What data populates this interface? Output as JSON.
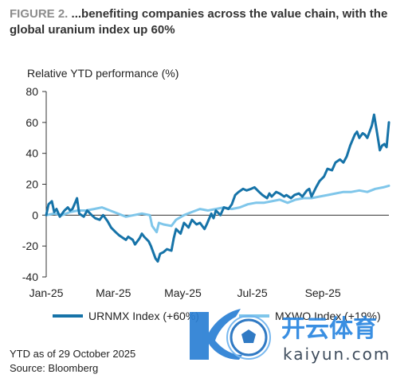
{
  "header": {
    "figure_label": "FIGURE 2.",
    "title": "...benefiting companies across the value chain, with the global uranium index up 60%"
  },
  "footer": {
    "note": "YTD as of 29 October 2025",
    "source": "Source: Bloomberg"
  },
  "watermark": {
    "text": "开云体育",
    "domain": "kaiyun.com"
  },
  "colors": {
    "urnmx": "#1673a8",
    "mxwo": "#7fc6ea",
    "axis": "#333333"
  },
  "chart_data": {
    "type": "line",
    "title": "",
    "ylabel": "Relative YTD performance (%)",
    "xlabel": "",
    "ylim": [
      -40,
      80
    ],
    "yticks": [
      -40,
      -20,
      0,
      20,
      40,
      60,
      80
    ],
    "xlim": [
      "2025-01-01",
      "2025-10-29"
    ],
    "xticks": [
      {
        "label": "Jan-25",
        "date": "2025-01-01"
      },
      {
        "label": "Mar-25",
        "date": "2025-03-01"
      },
      {
        "label": "May-25",
        "date": "2025-05-01"
      },
      {
        "label": "Jul-25",
        "date": "2025-07-01"
      },
      {
        "label": "Sep-25",
        "date": "2025-09-01"
      }
    ],
    "legend_position": "bottom",
    "series": [
      {
        "name": "URNMX Index (+60%)",
        "color": "#1673a8",
        "points": [
          [
            "2025-01-01",
            0
          ],
          [
            "2025-01-03",
            7
          ],
          [
            "2025-01-06",
            9
          ],
          [
            "2025-01-08",
            2
          ],
          [
            "2025-01-10",
            4
          ],
          [
            "2025-01-13",
            -1
          ],
          [
            "2025-01-15",
            1
          ],
          [
            "2025-01-17",
            3
          ],
          [
            "2025-01-20",
            5
          ],
          [
            "2025-01-22",
            3
          ],
          [
            "2025-01-24",
            4
          ],
          [
            "2025-01-27",
            9
          ],
          [
            "2025-01-28",
            11
          ],
          [
            "2025-01-30",
            1
          ],
          [
            "2025-02-03",
            -1
          ],
          [
            "2025-02-06",
            3
          ],
          [
            "2025-02-10",
            0
          ],
          [
            "2025-02-13",
            -2
          ],
          [
            "2025-02-17",
            -3
          ],
          [
            "2025-02-20",
            0
          ],
          [
            "2025-02-24",
            -4
          ],
          [
            "2025-02-27",
            -8
          ],
          [
            "2025-03-03",
            -11
          ],
          [
            "2025-03-06",
            -13
          ],
          [
            "2025-03-10",
            -15
          ],
          [
            "2025-03-12",
            -16
          ],
          [
            "2025-03-14",
            -14
          ],
          [
            "2025-03-18",
            -16
          ],
          [
            "2025-03-20",
            -19
          ],
          [
            "2025-03-24",
            -15
          ],
          [
            "2025-03-26",
            -12
          ],
          [
            "2025-03-28",
            -14
          ],
          [
            "2025-04-01",
            -17
          ],
          [
            "2025-04-03",
            -20
          ],
          [
            "2025-04-07",
            -28
          ],
          [
            "2025-04-09",
            -30
          ],
          [
            "2025-04-11",
            -25
          ],
          [
            "2025-04-14",
            -24
          ],
          [
            "2025-04-17",
            -22
          ],
          [
            "2025-04-21",
            -23
          ],
          [
            "2025-04-23",
            -15
          ],
          [
            "2025-04-25",
            -9
          ],
          [
            "2025-04-29",
            -12
          ],
          [
            "2025-05-02",
            -5
          ],
          [
            "2025-05-06",
            -8
          ],
          [
            "2025-05-09",
            -3
          ],
          [
            "2025-05-13",
            -6
          ],
          [
            "2025-05-16",
            -5
          ],
          [
            "2025-05-20",
            -9
          ],
          [
            "2025-05-22",
            -6
          ],
          [
            "2025-05-26",
            1
          ],
          [
            "2025-05-28",
            -2
          ],
          [
            "2025-05-30",
            3
          ],
          [
            "2025-06-03",
            0
          ],
          [
            "2025-06-06",
            5
          ],
          [
            "2025-06-10",
            4
          ],
          [
            "2025-06-13",
            7
          ],
          [
            "2025-06-16",
            13
          ],
          [
            "2025-06-19",
            15
          ],
          [
            "2025-06-23",
            17
          ],
          [
            "2025-06-26",
            16
          ],
          [
            "2025-06-30",
            17
          ],
          [
            "2025-07-03",
            18
          ],
          [
            "2025-07-07",
            15
          ],
          [
            "2025-07-10",
            13
          ],
          [
            "2025-07-14",
            11
          ],
          [
            "2025-07-16",
            14
          ],
          [
            "2025-07-18",
            12
          ],
          [
            "2025-07-22",
            15
          ],
          [
            "2025-07-25",
            14
          ],
          [
            "2025-07-29",
            12
          ],
          [
            "2025-07-31",
            13
          ],
          [
            "2025-08-04",
            11
          ],
          [
            "2025-08-07",
            13
          ],
          [
            "2025-08-11",
            14
          ],
          [
            "2025-08-14",
            12
          ],
          [
            "2025-08-18",
            16
          ],
          [
            "2025-08-20",
            17
          ],
          [
            "2025-08-22",
            12
          ],
          [
            "2025-08-26",
            18
          ],
          [
            "2025-08-29",
            22
          ],
          [
            "2025-09-02",
            25
          ],
          [
            "2025-09-05",
            30
          ],
          [
            "2025-09-09",
            29
          ],
          [
            "2025-09-12",
            34
          ],
          [
            "2025-09-16",
            36
          ],
          [
            "2025-09-19",
            34
          ],
          [
            "2025-09-22",
            38
          ],
          [
            "2025-09-25",
            45
          ],
          [
            "2025-09-29",
            52
          ],
          [
            "2025-10-01",
            54
          ],
          [
            "2025-10-03",
            50
          ],
          [
            "2025-10-06",
            53
          ],
          [
            "2025-10-08",
            52
          ],
          [
            "2025-10-10",
            50
          ],
          [
            "2025-10-14",
            58
          ],
          [
            "2025-10-16",
            65
          ],
          [
            "2025-10-18",
            56
          ],
          [
            "2025-10-20",
            47
          ],
          [
            "2025-10-21",
            42
          ],
          [
            "2025-10-23",
            45
          ],
          [
            "2025-10-25",
            46
          ],
          [
            "2025-10-27",
            44
          ],
          [
            "2025-10-29",
            60
          ]
        ]
      },
      {
        "name": "MXWO Index (+19%)",
        "color": "#7fc6ea",
        "points": [
          [
            "2025-01-01",
            0
          ],
          [
            "2025-01-08",
            1
          ],
          [
            "2025-01-15",
            0
          ],
          [
            "2025-01-22",
            2
          ],
          [
            "2025-01-29",
            3
          ],
          [
            "2025-02-05",
            3
          ],
          [
            "2025-02-12",
            4
          ],
          [
            "2025-02-19",
            5
          ],
          [
            "2025-02-26",
            3
          ],
          [
            "2025-03-05",
            1
          ],
          [
            "2025-03-12",
            -1
          ],
          [
            "2025-03-19",
            0
          ],
          [
            "2025-03-26",
            1
          ],
          [
            "2025-04-02",
            0
          ],
          [
            "2025-04-04",
            -7
          ],
          [
            "2025-04-08",
            -11
          ],
          [
            "2025-04-10",
            -5
          ],
          [
            "2025-04-14",
            -6
          ],
          [
            "2025-04-21",
            -7
          ],
          [
            "2025-04-25",
            -3
          ],
          [
            "2025-05-02",
            0
          ],
          [
            "2025-05-09",
            2
          ],
          [
            "2025-05-16",
            4
          ],
          [
            "2025-05-23",
            3
          ],
          [
            "2025-05-30",
            4
          ],
          [
            "2025-06-06",
            5
          ],
          [
            "2025-06-13",
            4
          ],
          [
            "2025-06-20",
            5
          ],
          [
            "2025-06-27",
            7
          ],
          [
            "2025-07-04",
            8
          ],
          [
            "2025-07-11",
            8
          ],
          [
            "2025-07-18",
            9
          ],
          [
            "2025-07-25",
            10
          ],
          [
            "2025-08-01",
            8
          ],
          [
            "2025-08-08",
            10
          ],
          [
            "2025-08-15",
            11
          ],
          [
            "2025-08-22",
            11
          ],
          [
            "2025-08-29",
            12
          ],
          [
            "2025-09-05",
            13
          ],
          [
            "2025-09-12",
            14
          ],
          [
            "2025-09-19",
            15
          ],
          [
            "2025-09-26",
            15
          ],
          [
            "2025-10-03",
            16
          ],
          [
            "2025-10-10",
            15
          ],
          [
            "2025-10-17",
            17
          ],
          [
            "2025-10-24",
            18
          ],
          [
            "2025-10-29",
            19
          ]
        ]
      }
    ]
  }
}
